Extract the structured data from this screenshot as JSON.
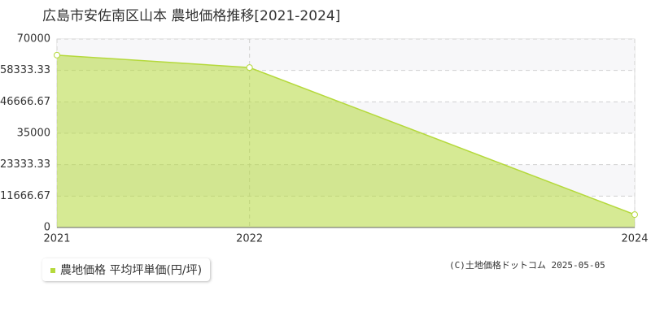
{
  "chart_data": {
    "type": "area",
    "title": "広島市安佐南区山本 農地価格推移[2021-2024]",
    "x": [
      2021,
      2022,
      2024
    ],
    "series": [
      {
        "name": "農地価格 平均坪単価(円/坪)",
        "color": "#b5d93c",
        "values": [
          64000,
          59400,
          4800
        ]
      }
    ],
    "xlim": [
      2021,
      2024
    ],
    "xticks": [
      2021,
      2022,
      2024
    ],
    "ylim": [
      0,
      70000
    ],
    "yticks": [
      0,
      11666.67,
      23333.33,
      35000,
      46666.67,
      58333.33,
      70000
    ],
    "grid": true,
    "legend": "bottom-left",
    "credit": "(C)土地価格ドットコム 2025-05-05"
  }
}
